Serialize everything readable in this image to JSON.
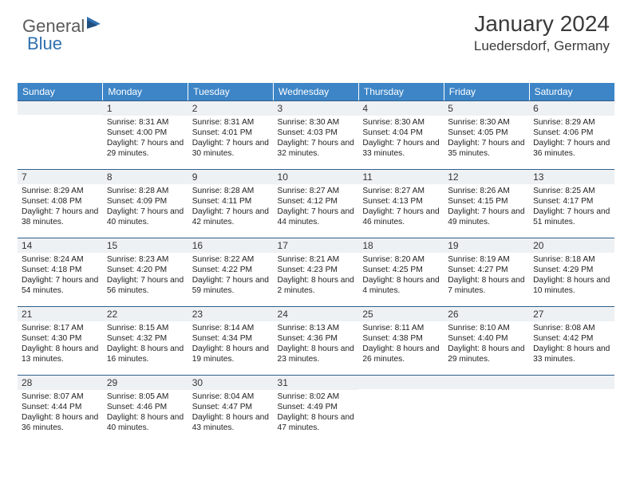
{
  "logo": {
    "text1": "General",
    "text2": "Blue"
  },
  "header": {
    "month": "January 2024",
    "location": "Luedersdorf, Germany"
  },
  "weekdays": [
    "Sunday",
    "Monday",
    "Tuesday",
    "Wednesday",
    "Thursday",
    "Friday",
    "Saturday"
  ],
  "colors": {
    "header_bg": "#3d85c6",
    "daynum_bg": "#eef1f3",
    "rule": "#2f5f8a"
  },
  "weeks": [
    [
      null,
      {
        "n": "1",
        "sr": "8:31 AM",
        "ss": "4:00 PM",
        "dl": "7 hours and 29 minutes."
      },
      {
        "n": "2",
        "sr": "8:31 AM",
        "ss": "4:01 PM",
        "dl": "7 hours and 30 minutes."
      },
      {
        "n": "3",
        "sr": "8:30 AM",
        "ss": "4:03 PM",
        "dl": "7 hours and 32 minutes."
      },
      {
        "n": "4",
        "sr": "8:30 AM",
        "ss": "4:04 PM",
        "dl": "7 hours and 33 minutes."
      },
      {
        "n": "5",
        "sr": "8:30 AM",
        "ss": "4:05 PM",
        "dl": "7 hours and 35 minutes."
      },
      {
        "n": "6",
        "sr": "8:29 AM",
        "ss": "4:06 PM",
        "dl": "7 hours and 36 minutes."
      }
    ],
    [
      {
        "n": "7",
        "sr": "8:29 AM",
        "ss": "4:08 PM",
        "dl": "7 hours and 38 minutes."
      },
      {
        "n": "8",
        "sr": "8:28 AM",
        "ss": "4:09 PM",
        "dl": "7 hours and 40 minutes."
      },
      {
        "n": "9",
        "sr": "8:28 AM",
        "ss": "4:11 PM",
        "dl": "7 hours and 42 minutes."
      },
      {
        "n": "10",
        "sr": "8:27 AM",
        "ss": "4:12 PM",
        "dl": "7 hours and 44 minutes."
      },
      {
        "n": "11",
        "sr": "8:27 AM",
        "ss": "4:13 PM",
        "dl": "7 hours and 46 minutes."
      },
      {
        "n": "12",
        "sr": "8:26 AM",
        "ss": "4:15 PM",
        "dl": "7 hours and 49 minutes."
      },
      {
        "n": "13",
        "sr": "8:25 AM",
        "ss": "4:17 PM",
        "dl": "7 hours and 51 minutes."
      }
    ],
    [
      {
        "n": "14",
        "sr": "8:24 AM",
        "ss": "4:18 PM",
        "dl": "7 hours and 54 minutes."
      },
      {
        "n": "15",
        "sr": "8:23 AM",
        "ss": "4:20 PM",
        "dl": "7 hours and 56 minutes."
      },
      {
        "n": "16",
        "sr": "8:22 AM",
        "ss": "4:22 PM",
        "dl": "7 hours and 59 minutes."
      },
      {
        "n": "17",
        "sr": "8:21 AM",
        "ss": "4:23 PM",
        "dl": "8 hours and 2 minutes."
      },
      {
        "n": "18",
        "sr": "8:20 AM",
        "ss": "4:25 PM",
        "dl": "8 hours and 4 minutes."
      },
      {
        "n": "19",
        "sr": "8:19 AM",
        "ss": "4:27 PM",
        "dl": "8 hours and 7 minutes."
      },
      {
        "n": "20",
        "sr": "8:18 AM",
        "ss": "4:29 PM",
        "dl": "8 hours and 10 minutes."
      }
    ],
    [
      {
        "n": "21",
        "sr": "8:17 AM",
        "ss": "4:30 PM",
        "dl": "8 hours and 13 minutes."
      },
      {
        "n": "22",
        "sr": "8:15 AM",
        "ss": "4:32 PM",
        "dl": "8 hours and 16 minutes."
      },
      {
        "n": "23",
        "sr": "8:14 AM",
        "ss": "4:34 PM",
        "dl": "8 hours and 19 minutes."
      },
      {
        "n": "24",
        "sr": "8:13 AM",
        "ss": "4:36 PM",
        "dl": "8 hours and 23 minutes."
      },
      {
        "n": "25",
        "sr": "8:11 AM",
        "ss": "4:38 PM",
        "dl": "8 hours and 26 minutes."
      },
      {
        "n": "26",
        "sr": "8:10 AM",
        "ss": "4:40 PM",
        "dl": "8 hours and 29 minutes."
      },
      {
        "n": "27",
        "sr": "8:08 AM",
        "ss": "4:42 PM",
        "dl": "8 hours and 33 minutes."
      }
    ],
    [
      {
        "n": "28",
        "sr": "8:07 AM",
        "ss": "4:44 PM",
        "dl": "8 hours and 36 minutes."
      },
      {
        "n": "29",
        "sr": "8:05 AM",
        "ss": "4:46 PM",
        "dl": "8 hours and 40 minutes."
      },
      {
        "n": "30",
        "sr": "8:04 AM",
        "ss": "4:47 PM",
        "dl": "8 hours and 43 minutes."
      },
      {
        "n": "31",
        "sr": "8:02 AM",
        "ss": "4:49 PM",
        "dl": "8 hours and 47 minutes."
      },
      null,
      null,
      null
    ]
  ],
  "labels": {
    "sunrise": "Sunrise: ",
    "sunset": "Sunset: ",
    "daylight": "Daylight: "
  }
}
